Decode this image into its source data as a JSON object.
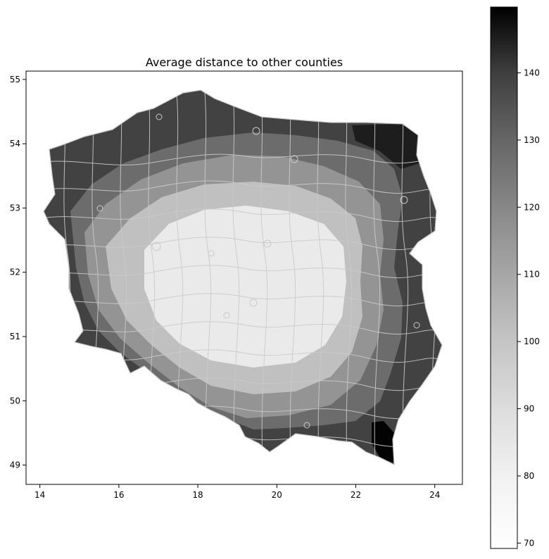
{
  "title": "Average distance to other counties",
  "map": {
    "type": "choropleth",
    "region": "Poland counties",
    "x_ticks": [
      14,
      16,
      18,
      20,
      22,
      24
    ],
    "y_ticks": [
      49,
      50,
      51,
      52,
      53,
      54,
      55
    ],
    "xlim": [
      13.65,
      24.7
    ],
    "ylim": [
      48.7,
      55.13
    ],
    "border_color": "#c8c8c8",
    "colormap": "Greys",
    "value_range": [
      69,
      150
    ],
    "zones": [
      {
        "name": "center",
        "value": 74
      },
      {
        "name": "inner-ring",
        "value": 86
      },
      {
        "name": "middle-ring",
        "value": 100
      },
      {
        "name": "outer-ring",
        "value": 113
      },
      {
        "name": "periphery",
        "value": 127
      },
      {
        "name": "north-east-corner",
        "value": 140
      },
      {
        "name": "south-east-tip",
        "value": 149
      }
    ]
  },
  "colorbar": {
    "ticks": [
      70,
      80,
      90,
      100,
      110,
      120,
      130,
      140
    ],
    "vmin": 69.2,
    "vmax": 149.8,
    "color_low": "#ffffff",
    "color_high": "#000000"
  }
}
